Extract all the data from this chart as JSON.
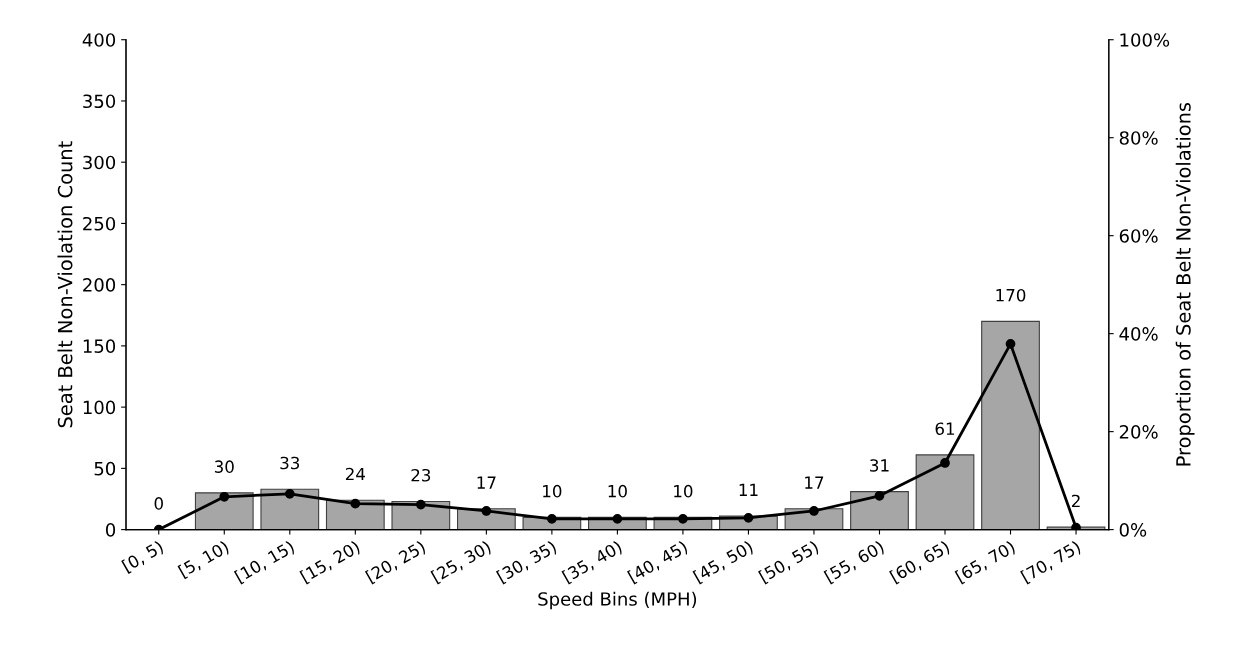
{
  "chart_data": {
    "type": "bar",
    "xlabel": "Speed Bins (MPH)",
    "ylabel": "Seat Belt Non-Violation Count",
    "y2label": "Proportion of Seat Belt Non-Violations",
    "categories": [
      "[0, 5)",
      "[5, 10)",
      "[10, 15)",
      "[15, 20)",
      "[20, 25)",
      "[25, 30)",
      "[30, 35)",
      "[35, 40)",
      "[40, 45)",
      "[45, 50)",
      "[50, 55)",
      "[55, 60)",
      "[60, 65)",
      "[65, 70)",
      "[70, 75)"
    ],
    "series": [
      {
        "color": "#a6a6a6",
        "values": [
          0,
          30,
          33,
          24,
          23,
          17,
          10,
          10,
          10,
          11,
          17,
          31,
          61,
          170,
          2
        ],
        "value_labels": [
          "0",
          "30",
          "33",
          "24",
          "23",
          "17",
          "10",
          "10",
          "10",
          "11",
          "17",
          "31",
          "61",
          "170",
          "2"
        ]
      },
      {
        "type": "line",
        "axis": "y2",
        "color": "#000000",
        "marker": "circle",
        "line_style": "solid",
        "values": [
          0,
          6.7,
          7.3,
          5.3,
          5.1,
          3.8,
          2.2,
          2.2,
          2.2,
          2.4,
          3.8,
          6.9,
          13.6,
          37.9,
          0.4
        ]
      }
    ],
    "ylim": [
      0,
      400
    ],
    "yticks": [
      0,
      50,
      100,
      150,
      200,
      250,
      300,
      350,
      400
    ],
    "y2lim": [
      0,
      100
    ],
    "y2ticks": [
      {
        "value": 0,
        "label": "0%"
      },
      {
        "value": 20,
        "label": "20%"
      },
      {
        "value": 40,
        "label": "40%"
      },
      {
        "value": 60,
        "label": "60%"
      },
      {
        "value": 80,
        "label": "80%"
      },
      {
        "value": 100,
        "label": "100%"
      }
    ]
  }
}
